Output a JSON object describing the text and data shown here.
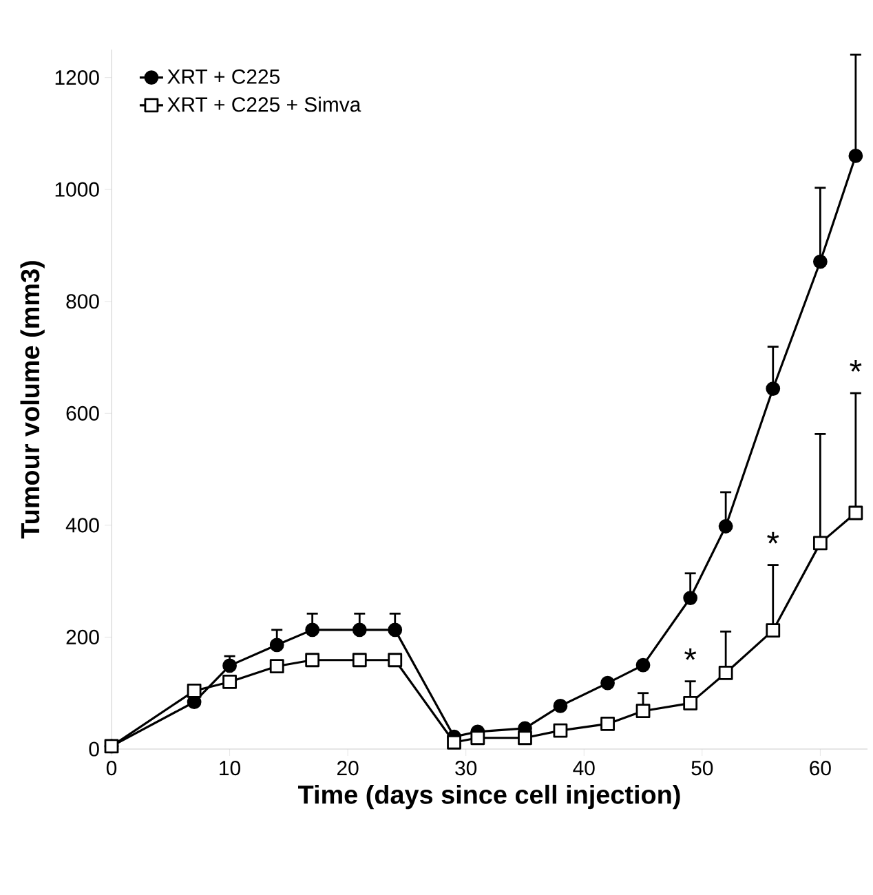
{
  "chart_data": {
    "type": "line",
    "xlabel": "Time (days since cell injection)",
    "ylabel": "Tumour volume (mm3)",
    "x": [
      0,
      7,
      10,
      14,
      17,
      21,
      24,
      29,
      31,
      35,
      38,
      42,
      45,
      49,
      52,
      56,
      60,
      63
    ],
    "series": [
      {
        "name": "XRT + C225",
        "color": "#000000",
        "marker": "circle",
        "values": [
          5,
          84,
          149,
          186,
          213,
          213,
          213,
          22,
          31,
          37,
          77,
          118,
          150,
          270,
          398,
          644,
          871,
          1060
        ],
        "errors": [
          null,
          null,
          [
            149,
            166
          ],
          [
            186,
            213
          ],
          [
            213,
            242
          ],
          [
            213,
            242
          ],
          [
            213,
            242
          ],
          null,
          null,
          null,
          null,
          null,
          null,
          [
            270,
            314
          ],
          [
            398,
            459
          ],
          [
            644,
            719
          ],
          [
            871,
            1003
          ],
          [
            1060,
            1241
          ]
        ]
      },
      {
        "name": "XRT + C225 + Simva",
        "color": "#000000",
        "marker": "square",
        "values": [
          5,
          104,
          120,
          148,
          159,
          159,
          159,
          12,
          20,
          20,
          33,
          45,
          68,
          82,
          136,
          212,
          368,
          422
        ],
        "errors": [
          null,
          null,
          null,
          null,
          null,
          null,
          null,
          null,
          null,
          null,
          null,
          null,
          [
            68,
            100
          ],
          [
            82,
            121
          ],
          [
            136,
            210
          ],
          [
            212,
            329
          ],
          [
            368,
            563
          ],
          [
            422,
            636
          ]
        ]
      }
    ],
    "annotations": [
      "*",
      "*",
      "*"
    ],
    "xlim": [
      0,
      64
    ],
    "ylim": [
      0,
      1250
    ],
    "xticks": [
      0,
      10,
      20,
      30,
      40,
      50,
      60
    ],
    "yticks": [
      0,
      200,
      400,
      600,
      800,
      1000,
      1200
    ],
    "grid": false,
    "legend": "top left",
    "line_style": "solid"
  }
}
